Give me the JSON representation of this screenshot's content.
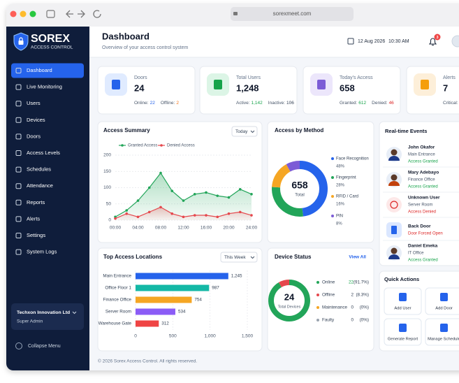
{
  "browser": {
    "url": "sorexmeet.com"
  },
  "sidebar": {
    "brand": "SOREX",
    "tagline": "ACCESS CONTROL",
    "nav": [
      "Dashboard",
      "Live Monitoring",
      "Users",
      "Devices",
      "Doors",
      "Access Levels",
      "Schedules",
      "Attendance",
      "Reports",
      "Alerts",
      "Settings",
      "System Logs"
    ],
    "org": {
      "name": "Techxon Innovation Ltd",
      "role": "Super Admin"
    },
    "collapse": "Collapse Menu"
  },
  "header": {
    "title": "Dashboard",
    "subtitle": "Overview of your access control system",
    "date": "12 Aug 2026",
    "time": "10:30 AM",
    "notifications": 3
  },
  "stats": [
    {
      "label": "Doors",
      "value": "24",
      "icon_bg": "#e0ebff",
      "icon_color": "#2563eb",
      "details": [
        {
          "label": "Online:",
          "value": "22",
          "color": "#2563eb"
        },
        {
          "label": "Offline:",
          "value": "2",
          "color": "#f97316"
        }
      ]
    },
    {
      "label": "Total Users",
      "value": "1,248",
      "icon_bg": "#dcf5e6",
      "icon_color": "#16a34a",
      "details": [
        {
          "label": "Active:",
          "value": "1,142",
          "color": "#16a34a"
        },
        {
          "label": "Inactive:",
          "value": "106",
          "color": "#334155"
        }
      ]
    },
    {
      "label": "Today's Access",
      "value": "658",
      "icon_bg": "#ece6fb",
      "icon_color": "#7c5cd6",
      "details": [
        {
          "label": "Granted:",
          "value": "612",
          "color": "#16a34a"
        },
        {
          "label": "Denied:",
          "value": "46",
          "color": "#dc2626"
        }
      ]
    },
    {
      "label": "Alerts",
      "value": "7",
      "icon_bg": "#fdefd9",
      "icon_color": "#f59e0b",
      "details": [
        {
          "label": "Critical:",
          "color": "#dc2626"
        }
      ]
    }
  ],
  "events": {
    "title": "Real-time Events",
    "items": [
      {
        "name": "John Okafor",
        "location": "Main Entrance",
        "status": "Access Granted",
        "status_color": "#16a34a"
      },
      {
        "name": "Mary Adebayo",
        "location": "Finance Office",
        "status": "Access Granted",
        "status_color": "#16a34a"
      },
      {
        "name": "Unknown User",
        "location": "Server Room",
        "status": "Access Denied",
        "status_color": "#dc2626"
      },
      {
        "name": "Back Door",
        "status": "Door Forced Open",
        "status_color": "#dc2626"
      },
      {
        "name": "Daniel Emeka",
        "location": "IT Office",
        "status": "Access Granted",
        "status_color": "#16a34a"
      }
    ]
  },
  "quick_actions": {
    "title": "Quick Actions",
    "items": [
      "Add User",
      "Add Door",
      "Generate Report",
      "Manage Schedule"
    ]
  },
  "footer": "© 2026 Sorex Access Control. All rights reserved.",
  "chart_data": [
    {
      "type": "line",
      "title": "Access Summary",
      "filter": "Today",
      "categories": [
        "00:00",
        null,
        "04:00",
        null,
        "08:00",
        null,
        "12:00",
        null,
        "16:00",
        null,
        "20:00",
        null,
        "24:00"
      ],
      "series": [
        {
          "name": "Granted Access",
          "color": "#22a559",
          "values": [
            10,
            30,
            60,
            100,
            145,
            90,
            60,
            80,
            85,
            75,
            70,
            95,
            80
          ]
        },
        {
          "name": "Denied Access",
          "color": "#e5484d",
          "values": [
            5,
            20,
            10,
            25,
            40,
            20,
            10,
            15,
            15,
            10,
            20,
            25,
            15
          ]
        }
      ],
      "ylim": [
        0,
        200
      ],
      "yticks": [
        0,
        50,
        100,
        150,
        200
      ],
      "grid": true
    },
    {
      "type": "donut",
      "title": "Access by Method",
      "center_value": "658",
      "center_label": "Total",
      "categories": [
        "Face Recognition",
        "Fingerprint",
        "RFID / Card",
        "PIN"
      ],
      "values": [
        48,
        28,
        16,
        8
      ],
      "value_labels": [
        "48%",
        "28%",
        "16%",
        "8%"
      ],
      "colors": [
        "#2563eb",
        "#22a559",
        "#f5a623",
        "#7c5cd6"
      ]
    },
    {
      "type": "barh",
      "title": "Top Access Locations",
      "filter": "This Week",
      "categories": [
        "Main Entrance",
        "Office Floor 1",
        "Finance Office",
        "Server Room",
        "Warehouse Gate"
      ],
      "values": [
        1245,
        987,
        754,
        534,
        312
      ],
      "value_labels": [
        "1,245",
        "987",
        "754",
        "534",
        "312"
      ],
      "colors": [
        "#2563eb",
        "#14b8a6",
        "#f5a623",
        "#8b5cf6",
        "#ef4444"
      ],
      "xlim": [
        0,
        1500
      ],
      "xticks": [
        0,
        500,
        {
          "value": 1000,
          "label": "1,000"
        },
        {
          "value": 1500,
          "label": "1,500"
        }
      ],
      "grid": true
    },
    {
      "type": "donut",
      "title": "Device Status",
      "link": "View All",
      "center_value": "24",
      "center_label": "Total Devices",
      "categories": [
        "Online",
        "Offline",
        "Maintenance",
        "Faulty"
      ],
      "values": [
        22,
        2,
        0,
        0
      ],
      "percent_labels": [
        "(91.7%)",
        "(8.3%)",
        "(0%)",
        "(0%)"
      ],
      "colors": [
        "#22a559",
        "#e5484d",
        "#f5a623",
        "#9aa3af"
      ]
    }
  ]
}
